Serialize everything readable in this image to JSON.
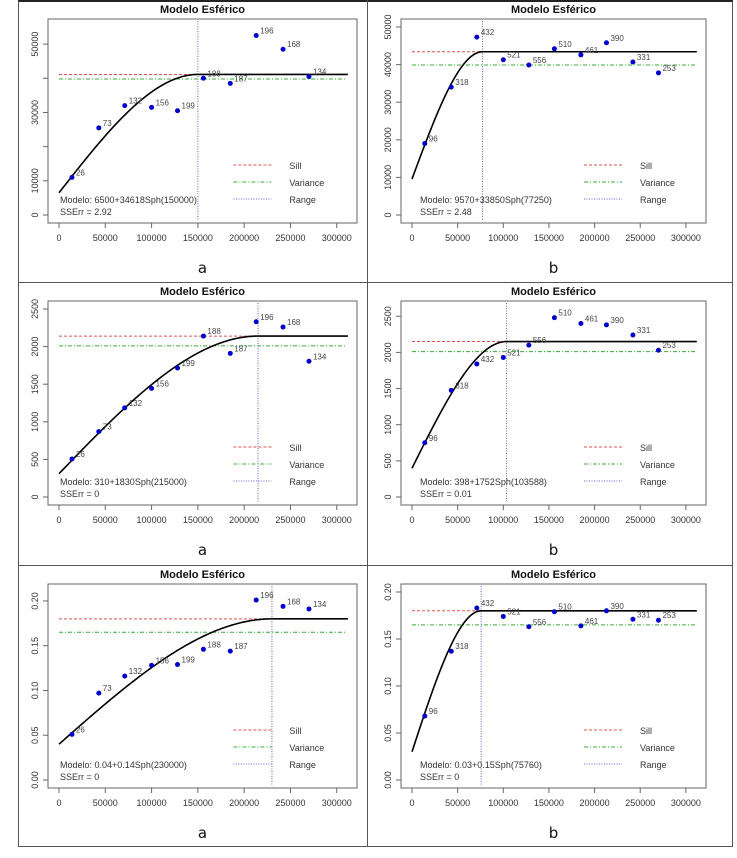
{
  "chart_data": [
    {
      "type": "scatter",
      "panel_id": "top-a",
      "title": "Modelo Esférico",
      "caption": "a",
      "xlabel": "",
      "ylabel": "",
      "xlim": [
        0,
        310000
      ],
      "ylim": [
        0,
        55000
      ],
      "x_ticks": [
        0,
        50000,
        100000,
        150000,
        200000,
        250000,
        300000
      ],
      "x_tick_labels": [
        "0",
        "50000",
        "100000",
        "150000",
        "200000",
        "250000",
        "300000"
      ],
      "y_ticks": [
        0,
        10000,
        20000,
        30000,
        40000,
        50000
      ],
      "y_tick_labels": [
        "0",
        "10000",
        "",
        "30000",
        "",
        "50000"
      ],
      "points": [
        {
          "x": 14000,
          "y": 11000,
          "label": "26"
        },
        {
          "x": 43000,
          "y": 25500,
          "label": "73"
        },
        {
          "x": 71000,
          "y": 32000,
          "label": "132"
        },
        {
          "x": 100000,
          "y": 31500,
          "label": "156"
        },
        {
          "x": 128000,
          "y": 30500,
          "label": "199"
        },
        {
          "x": 156000,
          "y": 40000,
          "label": "188"
        },
        {
          "x": 185000,
          "y": 38500,
          "label": "187"
        },
        {
          "x": 213000,
          "y": 52500,
          "label": "196"
        },
        {
          "x": 242000,
          "y": 48500,
          "label": "168"
        },
        {
          "x": 270000,
          "y": 40500,
          "label": "134"
        }
      ],
      "model": {
        "nugget": 6500,
        "partial_sill": 34618,
        "range": 150000,
        "type": "Sph"
      },
      "sill": 41118,
      "variance": 39800,
      "model_text": "Modelo: 6500+34618Sph(150000)",
      "sserr_text": "SSErr = 2.92",
      "legend": {
        "placement": "bottom-right",
        "entries": [
          "Sill",
          "Variance",
          "Range"
        ]
      }
    },
    {
      "type": "scatter",
      "panel_id": "top-b",
      "title": "Modelo Esférico",
      "caption": "b",
      "xlabel": "",
      "ylabel": "",
      "xlim": [
        0,
        310000
      ],
      "ylim": [
        0,
        50000
      ],
      "x_ticks": [
        0,
        50000,
        100000,
        150000,
        200000,
        250000,
        300000
      ],
      "x_tick_labels": [
        "0",
        "50000",
        "100000",
        "150000",
        "200000",
        "250000",
        "300000"
      ],
      "y_ticks": [
        0,
        10000,
        20000,
        30000,
        40000,
        50000
      ],
      "y_tick_labels": [
        "0",
        "10000",
        "20000",
        "30000",
        "40000",
        "50000"
      ],
      "points": [
        {
          "x": 14000,
          "y": 19000,
          "label": "96"
        },
        {
          "x": 43000,
          "y": 34000,
          "label": "318"
        },
        {
          "x": 71000,
          "y": 47300,
          "label": "432"
        },
        {
          "x": 100000,
          "y": 41300,
          "label": "521"
        },
        {
          "x": 128000,
          "y": 39900,
          "label": "556"
        },
        {
          "x": 156000,
          "y": 44200,
          "label": "510"
        },
        {
          "x": 185000,
          "y": 42600,
          "label": "461"
        },
        {
          "x": 213000,
          "y": 45800,
          "label": "390"
        },
        {
          "x": 242000,
          "y": 40700,
          "label": "331"
        },
        {
          "x": 270000,
          "y": 37800,
          "label": "253"
        }
      ],
      "model": {
        "nugget": 9570,
        "partial_sill": 33850,
        "range": 77250,
        "type": "Sph"
      },
      "sill": 43420,
      "variance": 39900,
      "model_text": "Modelo: 9570+33850Sph(77250)",
      "sserr_text": "SSErr = 2.48",
      "legend": {
        "placement": "bottom-right",
        "entries": [
          "Sill",
          "Variance",
          "Range"
        ]
      }
    },
    {
      "type": "scatter",
      "panel_id": "mid-a",
      "title": "Modelo Esférico",
      "caption": "a",
      "xlabel": "",
      "ylabel": "",
      "xlim": [
        0,
        310000
      ],
      "ylim": [
        0,
        2500
      ],
      "x_ticks": [
        0,
        50000,
        100000,
        150000,
        200000,
        250000,
        300000
      ],
      "x_tick_labels": [
        "0",
        "50000",
        "100000",
        "150000",
        "200000",
        "250000",
        "300000"
      ],
      "y_ticks": [
        0,
        500,
        1000,
        1500,
        2000,
        2500
      ],
      "y_tick_labels": [
        "0",
        "500",
        "1000",
        "1500",
        "2000",
        "2500"
      ],
      "points": [
        {
          "x": 14000,
          "y": 505,
          "label": "26"
        },
        {
          "x": 43000,
          "y": 870,
          "label": "73"
        },
        {
          "x": 71000,
          "y": 1185,
          "label": "132"
        },
        {
          "x": 100000,
          "y": 1445,
          "label": "156"
        },
        {
          "x": 128000,
          "y": 1715,
          "label": "199"
        },
        {
          "x": 156000,
          "y": 2140,
          "label": "188"
        },
        {
          "x": 185000,
          "y": 1910,
          "label": "187"
        },
        {
          "x": 213000,
          "y": 2330,
          "label": "196"
        },
        {
          "x": 242000,
          "y": 2260,
          "label": "168"
        },
        {
          "x": 270000,
          "y": 1805,
          "label": "134"
        }
      ],
      "model": {
        "nugget": 310,
        "partial_sill": 1830,
        "range": 215000,
        "type": "Sph"
      },
      "sill": 2140,
      "variance": 2010,
      "model_text": "Modelo: 310+1830Sph(215000)",
      "sserr_text": "SSErr = 0",
      "legend": {
        "placement": "bottom-right",
        "entries": [
          "Sill",
          "Variance",
          "Range"
        ]
      }
    },
    {
      "type": "scatter",
      "panel_id": "mid-b",
      "title": "Modelo Esférico",
      "caption": "b",
      "xlabel": "",
      "ylabel": "",
      "xlim": [
        0,
        310000
      ],
      "ylim": [
        0,
        2600
      ],
      "x_ticks": [
        0,
        50000,
        100000,
        150000,
        200000,
        250000,
        300000
      ],
      "x_tick_labels": [
        "0",
        "50000",
        "100000",
        "150000",
        "200000",
        "250000",
        "300000"
      ],
      "y_ticks": [
        0,
        500,
        1000,
        1500,
        2000,
        2500
      ],
      "y_tick_labels": [
        "0",
        "500",
        "1000",
        "1500",
        "2000",
        "2500"
      ],
      "points": [
        {
          "x": 14000,
          "y": 750,
          "label": "96"
        },
        {
          "x": 43000,
          "y": 1475,
          "label": "318"
        },
        {
          "x": 71000,
          "y": 1840,
          "label": "432"
        },
        {
          "x": 100000,
          "y": 1930,
          "label": "521"
        },
        {
          "x": 128000,
          "y": 2100,
          "label": "556"
        },
        {
          "x": 156000,
          "y": 2480,
          "label": "510"
        },
        {
          "x": 185000,
          "y": 2400,
          "label": "461"
        },
        {
          "x": 213000,
          "y": 2380,
          "label": "390"
        },
        {
          "x": 242000,
          "y": 2240,
          "label": "331"
        },
        {
          "x": 270000,
          "y": 2030,
          "label": "253"
        }
      ],
      "model": {
        "nugget": 398,
        "partial_sill": 1752,
        "range": 103588,
        "type": "Sph"
      },
      "sill": 2150,
      "variance": 2010,
      "model_text": "Modelo: 398+1752Sph(103588)",
      "sserr_text": "SSErr = 0.01",
      "legend": {
        "placement": "bottom-right",
        "entries": [
          "Sill",
          "Variance",
          "Range"
        ]
      }
    },
    {
      "type": "scatter",
      "panel_id": "bot-a",
      "title": "Modelo Esférico",
      "caption": "a",
      "xlabel": "",
      "ylabel": "",
      "xlim": [
        0,
        310000
      ],
      "ylim": [
        0,
        0.21
      ],
      "x_ticks": [
        0,
        50000,
        100000,
        150000,
        200000,
        250000,
        300000
      ],
      "x_tick_labels": [
        "0",
        "50000",
        "100000",
        "150000",
        "200000",
        "250000",
        "300000"
      ],
      "y_ticks": [
        0,
        0.05,
        0.1,
        0.15,
        0.2
      ],
      "y_tick_labels": [
        "0.00",
        "0.05",
        "0.10",
        "0.15",
        "0.20"
      ],
      "points": [
        {
          "x": 14000,
          "y": 0.051,
          "label": "26"
        },
        {
          "x": 43000,
          "y": 0.097,
          "label": "73"
        },
        {
          "x": 71000,
          "y": 0.116,
          "label": "132"
        },
        {
          "x": 100000,
          "y": 0.128,
          "label": "156"
        },
        {
          "x": 128000,
          "y": 0.129,
          "label": "199"
        },
        {
          "x": 156000,
          "y": 0.146,
          "label": "188"
        },
        {
          "x": 185000,
          "y": 0.144,
          "label": "187"
        },
        {
          "x": 213000,
          "y": 0.201,
          "label": "196"
        },
        {
          "x": 242000,
          "y": 0.194,
          "label": "168"
        },
        {
          "x": 270000,
          "y": 0.191,
          "label": "134"
        }
      ],
      "model": {
        "nugget": 0.04,
        "partial_sill": 0.14,
        "range": 230000,
        "type": "Sph"
      },
      "sill": 0.18,
      "variance": 0.165,
      "model_text": "Modelo: 0.04+0.14Sph(230000)",
      "sserr_text": "SSErr = 0",
      "legend": {
        "placement": "bottom-right",
        "entries": [
          "Sill",
          "Variance",
          "Range"
        ]
      }
    },
    {
      "type": "scatter",
      "panel_id": "bot-b",
      "title": "Modelo Esférico",
      "caption": "b",
      "xlabel": "",
      "ylabel": "",
      "xlim": [
        0,
        310000
      ],
      "ylim": [
        0,
        0.2
      ],
      "x_ticks": [
        0,
        50000,
        100000,
        150000,
        200000,
        250000,
        300000
      ],
      "x_tick_labels": [
        "0",
        "50000",
        "100000",
        "150000",
        "200000",
        "250000",
        "300000"
      ],
      "y_ticks": [
        0,
        0.05,
        0.1,
        0.15,
        0.2
      ],
      "y_tick_labels": [
        "0.00",
        "0.05",
        "0.10",
        "0.15",
        "0.20"
      ],
      "points": [
        {
          "x": 14000,
          "y": 0.068,
          "label": "96"
        },
        {
          "x": 43000,
          "y": 0.137,
          "label": "318"
        },
        {
          "x": 71000,
          "y": 0.183,
          "label": "432"
        },
        {
          "x": 100000,
          "y": 0.174,
          "label": "521"
        },
        {
          "x": 128000,
          "y": 0.163,
          "label": "556"
        },
        {
          "x": 156000,
          "y": 0.179,
          "label": "510"
        },
        {
          "x": 185000,
          "y": 0.164,
          "label": "461"
        },
        {
          "x": 213000,
          "y": 0.18,
          "label": "390"
        },
        {
          "x": 242000,
          "y": 0.171,
          "label": "331"
        },
        {
          "x": 270000,
          "y": 0.17,
          "label": "253"
        }
      ],
      "model": {
        "nugget": 0.03,
        "partial_sill": 0.15,
        "range": 75760,
        "type": "Sph"
      },
      "sill": 0.18,
      "variance": 0.165,
      "model_text": "Modelo: 0.03+0.15Sph(75760)",
      "sserr_text": "SSErr = 0",
      "legend": {
        "placement": "bottom-right",
        "entries": [
          "Sill",
          "Variance",
          "Range"
        ]
      }
    }
  ],
  "colors": {
    "points": "#0000cc",
    "model_curve": "#000000",
    "sill": "#e05050",
    "variance": "#30b030",
    "range": "#6060d0",
    "frame": "#555555",
    "text": "#333333"
  }
}
